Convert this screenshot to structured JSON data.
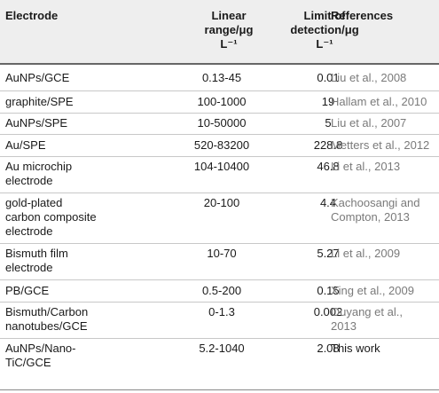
{
  "headers": {
    "electrode": "Electrode",
    "range_line1": "Linear",
    "range_line2": "range/μg",
    "range_line3": "L⁻¹",
    "lod_line1": "Limit of",
    "lod_line2": "detection/μg",
    "lod_line3": "L⁻¹",
    "references": "References"
  },
  "rows": [
    {
      "electrode": "AuNPs/GCE",
      "electrode2": "",
      "electrode3": "",
      "range": "0.13-45",
      "lod": "0.01",
      "ref1": "Liu et al., 2008",
      "ref2": ""
    },
    {
      "electrode": "graphite/SPE",
      "electrode2": "",
      "electrode3": "",
      "range": "100-1000",
      "lod": "19",
      "ref1": "Hallam et al., 2010",
      "ref2": ""
    },
    {
      "electrode": "AuNPs/SPE",
      "electrode2": "",
      "electrode3": "",
      "range": "10-50000",
      "lod": "5",
      "ref1": "Liu et al., 2007",
      "ref2": ""
    },
    {
      "electrode": "Au/SPE",
      "electrode2": "",
      "electrode3": "",
      "range": "520-83200",
      "lod": "228.8",
      "ref1": "Metters et al., 2012",
      "ref2": ""
    },
    {
      "electrode": "Au microchip",
      "electrode2": "electrode",
      "electrode3": "",
      "range": "104-10400",
      "lod": "46.8",
      "ref1": "Li et al., 2013",
      "ref2": ""
    },
    {
      "electrode": "gold-plated",
      "electrode2": "carbon composite",
      "electrode3": "electrode",
      "range": "20-100",
      "lod": "4.4",
      "ref1": "Kachoosangi and",
      "ref2": "Compton, 2013"
    },
    {
      "electrode": "Bismuth film",
      "electrode2": "electrode",
      "electrode3": "",
      "range": "10-70",
      "lod": "5.27",
      "ref1": "Li et al., 2009",
      "ref2": ""
    },
    {
      "electrode": "PB/GCE",
      "electrode2": "",
      "electrode3": "",
      "range": "0.5-200",
      "lod": "0.15",
      "ref1": "Xing et al., 2009",
      "ref2": ""
    },
    {
      "electrode": "Bismuth/Carbon",
      "electrode2": "nanotubes/GCE",
      "electrode3": "",
      "range": "0-1.3",
      "lod": "0.002",
      "ref1": "Ouyang et al.,",
      "ref2": "2013"
    },
    {
      "electrode": "AuNPs/Nano-",
      "electrode2": "TiC/GCE",
      "electrode3": "",
      "range": "5.2-1040",
      "lod": "2.08",
      "ref1": "This work",
      "ref2": ""
    }
  ]
}
